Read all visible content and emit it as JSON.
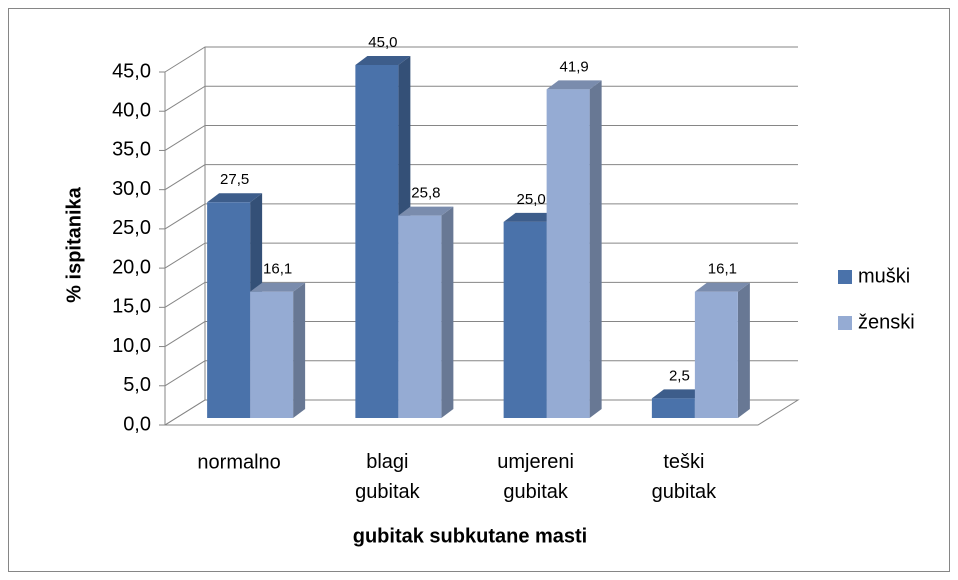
{
  "chart_data": {
    "type": "bar3d",
    "categories": [
      "normalno",
      "blagi gubitak",
      "umjereni gubitak",
      "teški gubitak"
    ],
    "series": [
      {
        "name": "muški",
        "color": "#4a72aa",
        "values": [
          27.5,
          45.0,
          25.0,
          2.5
        ],
        "value_labels": [
          "27,5",
          "45,0",
          "25,0",
          "2,5"
        ]
      },
      {
        "name": "ženski",
        "color": "#95abd3",
        "values": [
          16.1,
          25.8,
          41.9,
          16.1
        ],
        "value_labels": [
          "16,1",
          "25,8",
          "41,9",
          "16,1"
        ]
      }
    ],
    "ylim": [
      0,
      45
    ],
    "yticks": [
      {
        "value": 0,
        "label": "0,0"
      },
      {
        "value": 5,
        "label": "5,0"
      },
      {
        "value": 10,
        "label": "10,0"
      },
      {
        "value": 15,
        "label": "15,0"
      },
      {
        "value": 20,
        "label": "20,0"
      },
      {
        "value": 25,
        "label": "25,0"
      },
      {
        "value": 30,
        "label": "30,0"
      },
      {
        "value": 35,
        "label": "35,0"
      },
      {
        "value": 40,
        "label": "40,0"
      },
      {
        "value": 45,
        "label": "45,0"
      }
    ],
    "ylabel": "% ispitanika",
    "xlabel": "gubitak subkutane masti",
    "grid": true,
    "legend": "right"
  }
}
